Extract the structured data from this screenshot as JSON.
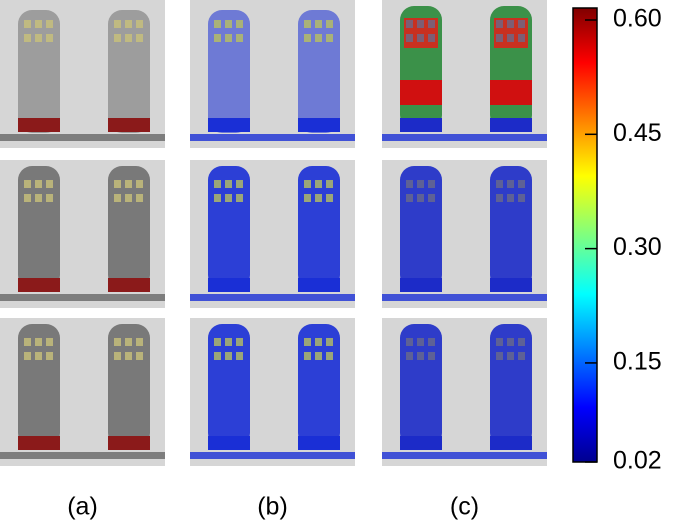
{
  "figure": {
    "panel_labels": [
      "(a)",
      "(b)",
      "(c)"
    ],
    "colorbar": {
      "lim": [
        0.02,
        0.6
      ],
      "ticks": [
        {
          "value": 0.6,
          "label": "0.60"
        },
        0.45,
        {
          "value": 0.3,
          "label": "0.30"
        },
        0.15,
        0.02
      ]
    }
  }
}
